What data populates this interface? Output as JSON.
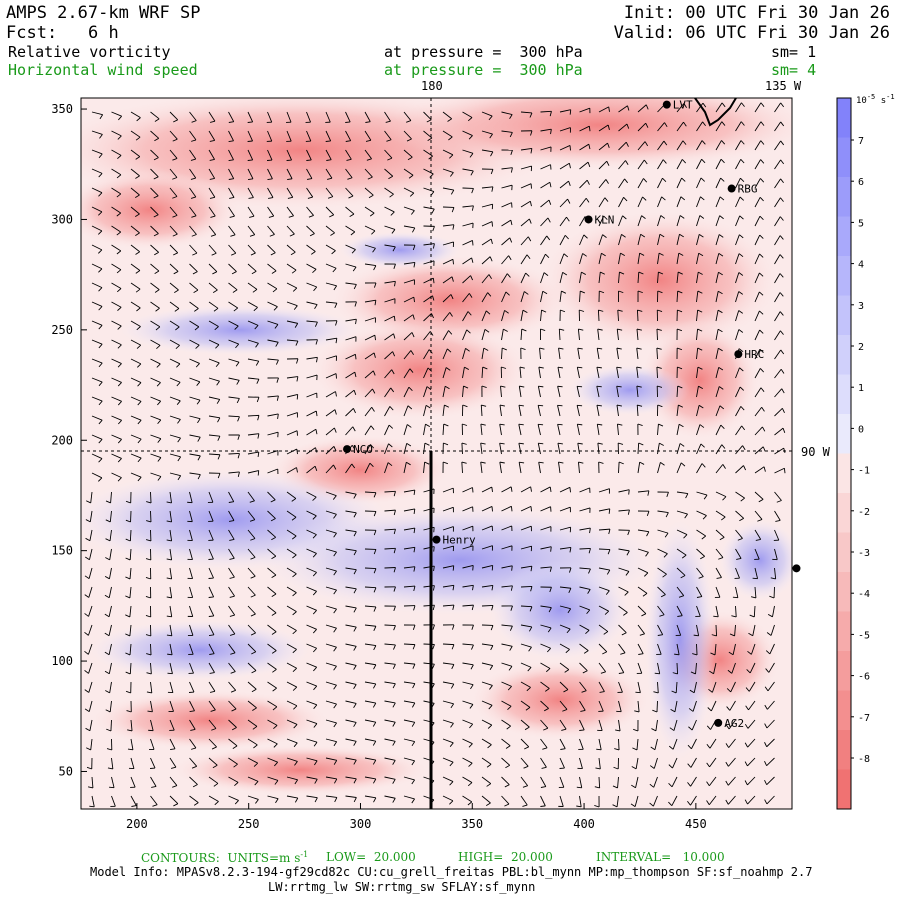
{
  "header": {
    "model": "AMPS 2.67-km WRF SP",
    "fcst_label": "Fcst:",
    "fcst_value": "6 h",
    "init": "Init: 00 UTC Fri 30 Jan 26",
    "valid": "Valid: 06 UTC Fri 30 Jan 26",
    "field1_name": "Relative vorticity",
    "field1_level": "at pressure =  300 hPa",
    "field1_sm": "sm= 1",
    "field2_name": "Horizontal wind speed",
    "field2_level": "at pressure =  300 hPa",
    "field2_sm": "sm= 4"
  },
  "colors": {
    "positive": "#7d7ae6",
    "negative": "#f07272",
    "field2_text": "#1a9a1a"
  },
  "map": {
    "x_ticks": [
      "200",
      "250",
      "300",
      "350",
      "400",
      "450"
    ],
    "y_ticks": [
      "350",
      "300",
      "250",
      "200",
      "150",
      "100",
      "50"
    ],
    "top_labels": [
      "180",
      "135 W"
    ],
    "right_label": "90 W",
    "stations": [
      {
        "name": "LVT",
        "x": 437,
        "y": 352
      },
      {
        "name": "RBG",
        "x": 466,
        "y": 314
      },
      {
        "name": "KLN",
        "x": 402,
        "y": 300
      },
      {
        "name": "HRC",
        "x": 469,
        "y": 239
      },
      {
        "name": "NCO",
        "x": 294,
        "y": 196
      },
      {
        "name": "Henry",
        "x": 334,
        "y": 155
      },
      {
        "name": "AG2",
        "x": 460,
        "y": 72
      },
      {
        "name": "",
        "x": 495,
        "y": 142
      }
    ]
  },
  "colorbar": {
    "units": "10^-5 s^-1",
    "units_base": "10",
    "units_exp": "-5",
    "units_s": "s",
    "units_sexp": "-1",
    "labels": [
      "7",
      "6",
      "5",
      "4",
      "3",
      "2",
      "1",
      "0",
      "-1",
      "-2",
      "-3",
      "-4",
      "-5",
      "-6",
      "-7",
      "-8"
    ]
  },
  "footer": {
    "contours": "CONTOURS:  UNITS=m s",
    "contours_exp": "-1",
    "low": "LOW=  20.000",
    "high": "HIGH=  20.000",
    "interval": "INTERVAL=   10.000",
    "model_info": "Model Info: MPASv8.2.3-194-gf29cd82c CU:cu_grell_freitas PBL:bl_mynn MP:mp_thompson SF:sf_noahmp 2.7",
    "model_info2": "LW:rrtmg_lw SW:rrtmg_sw SFLAY:sf_mynn"
  }
}
